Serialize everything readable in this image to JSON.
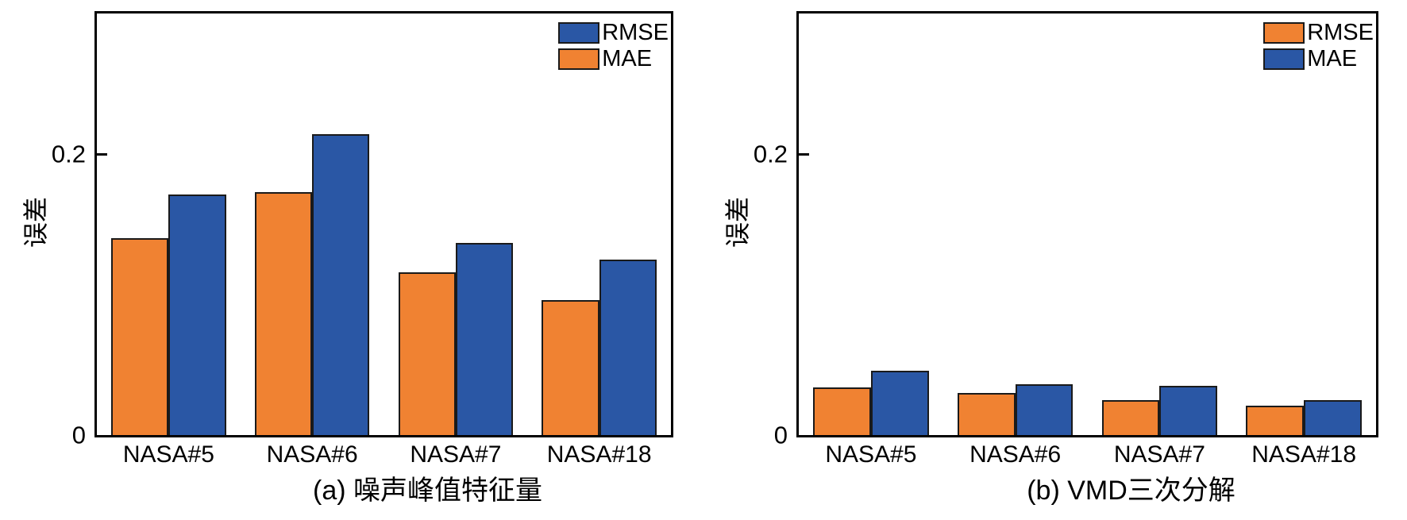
{
  "figure": {
    "background": "#ffffff"
  },
  "colors": {
    "orange": "#F08232",
    "blue": "#2A57A5",
    "bar_edge": "#1a1a1a",
    "axis": "#000000",
    "text": "#000000"
  },
  "chart_data": [
    {
      "type": "bar",
      "panel": "a",
      "caption": "(a) 噪声峰值特征量",
      "ylabel": "误差",
      "xlabel": "",
      "ylim": [
        0,
        0.3
      ],
      "grid": false,
      "legend_position": "top-right-inside",
      "yticks": [
        {
          "value": 0,
          "label": "0"
        },
        {
          "value": 0.2,
          "label": "0.2"
        }
      ],
      "categories": [
        "NASA#5",
        "NASA#6",
        "NASA#7",
        "NASA#18"
      ],
      "series": [
        {
          "name": "MAE",
          "color_key": "orange",
          "values": [
            0.14,
            0.173,
            0.116,
            0.096
          ]
        },
        {
          "name": "RMSE",
          "color_key": "blue",
          "values": [
            0.171,
            0.214,
            0.137,
            0.125
          ]
        }
      ],
      "legend": [
        {
          "label": "RMSE",
          "color_key": "blue"
        },
        {
          "label": "MAE",
          "color_key": "orange"
        }
      ]
    },
    {
      "type": "bar",
      "panel": "b",
      "caption": "(b) VMD三次分解",
      "ylabel": "误差",
      "xlabel": "",
      "ylim": [
        0,
        0.3
      ],
      "grid": false,
      "legend_position": "top-right-inside",
      "yticks": [
        {
          "value": 0,
          "label": "0"
        },
        {
          "value": 0.2,
          "label": "0.2"
        }
      ],
      "categories": [
        "NASA#5",
        "NASA#6",
        "NASA#7",
        "NASA#18"
      ],
      "series": [
        {
          "name": "RMSE",
          "color_key": "orange",
          "values": [
            0.034,
            0.03,
            0.025,
            0.021
          ]
        },
        {
          "name": "MAE",
          "color_key": "blue",
          "values": [
            0.046,
            0.036,
            0.035,
            0.025
          ]
        }
      ],
      "legend": [
        {
          "label": "RMSE",
          "color_key": "orange"
        },
        {
          "label": "MAE",
          "color_key": "blue"
        }
      ]
    }
  ]
}
